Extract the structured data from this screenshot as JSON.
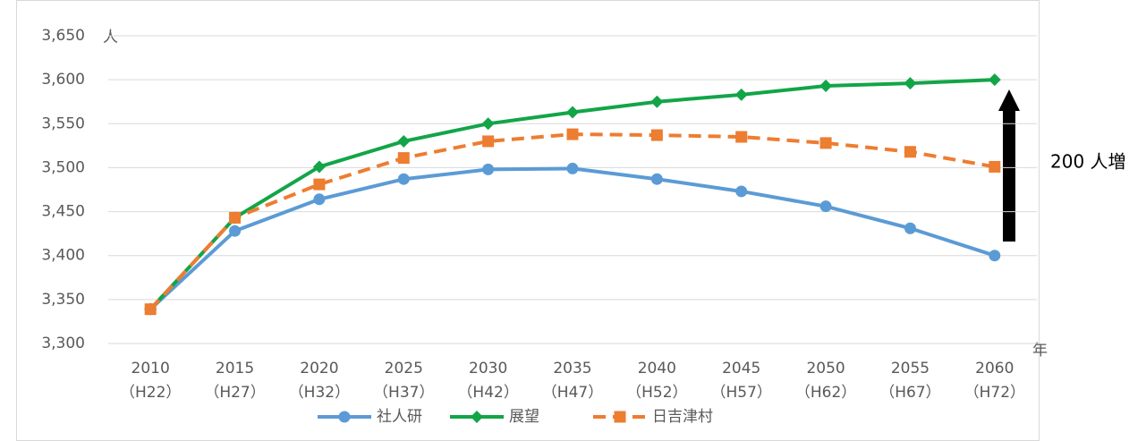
{
  "chart_data": {
    "type": "line",
    "categories": [
      [
        "2010",
        "（H22）"
      ],
      [
        "2015",
        "（H27）"
      ],
      [
        "2020",
        "（H32）"
      ],
      [
        "2025",
        "（H37）"
      ],
      [
        "2030",
        "（H42）"
      ],
      [
        "2035",
        "（H47）"
      ],
      [
        "2040",
        "（H52）"
      ],
      [
        "2045",
        "（H57）"
      ],
      [
        "2050",
        "（H62）"
      ],
      [
        "2055",
        "（H67）"
      ],
      [
        "2060",
        "（H72）"
      ]
    ],
    "series": [
      {
        "name": "社人研",
        "color": "#5b9bd5",
        "marker": "circle",
        "values": [
          3339,
          3428,
          3464,
          3487,
          3498,
          3499,
          3487,
          3473,
          3456,
          3431,
          3400
        ]
      },
      {
        "name": "展望",
        "color": "#12a548",
        "marker": "diamond",
        "values": [
          3339,
          3443,
          3501,
          3530,
          3550,
          3563,
          3575,
          3583,
          3593,
          3596,
          3600
        ]
      },
      {
        "name": "日吉津村",
        "color": "#ed7d31",
        "marker": "square",
        "dashed": true,
        "values": [
          3339,
          3443,
          3481,
          3511,
          3530,
          3538,
          3537,
          3535,
          3528,
          3518,
          3501
        ]
      }
    ],
    "ylim": [
      3300,
      3650
    ],
    "yticks": [
      {
        "value": 3300,
        "label": "3,300"
      },
      {
        "value": 3350,
        "label": "3,350"
      },
      {
        "value": 3400,
        "label": "3,400"
      },
      {
        "value": 3450,
        "label": "3,450"
      },
      {
        "value": 3500,
        "label": "3,500"
      },
      {
        "value": 3550,
        "label": "3,550"
      },
      {
        "value": 3600,
        "label": "3,600"
      },
      {
        "value": 3650,
        "label": "3,650"
      }
    ],
    "y_unit": "人",
    "x_unit": "年",
    "annotation": "200 人増",
    "grid": true,
    "legend": "bottom"
  }
}
